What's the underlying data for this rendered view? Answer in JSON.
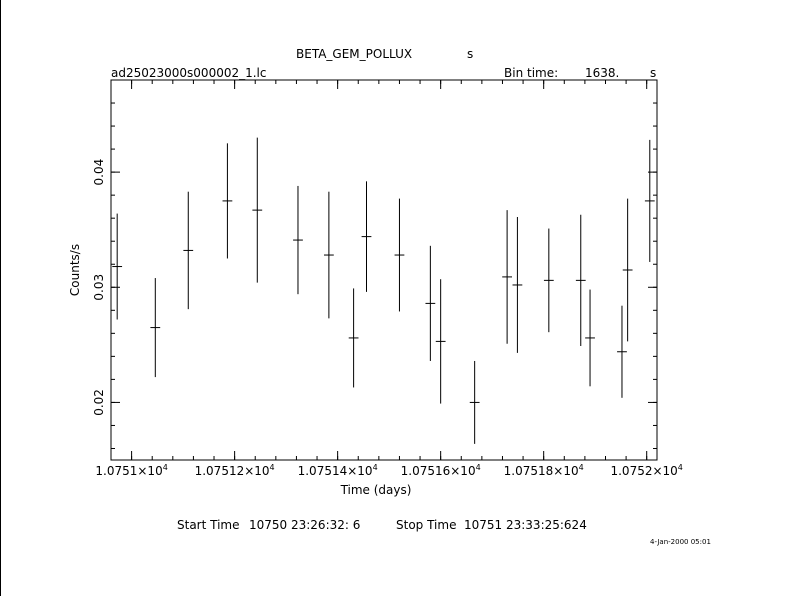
{
  "header": {
    "object_name": "BETA_GEM_POLLUX",
    "object_suffix": "s",
    "file_name": "ad25023000s000002_1.lc",
    "bin_time_label": "Bin time:",
    "bin_time_value": "1638.",
    "bin_time_unit": "s"
  },
  "footer": {
    "start_label": "Start Time",
    "start_value": "10750 23:26:32:  6",
    "stop_label": "Stop Time",
    "stop_value": "10751 23:33:25:624",
    "timestamp": "4-Jan-2000 05:01"
  },
  "chart_data": {
    "type": "scatter",
    "xlabel": "Time (days)",
    "ylabel": "Counts/s",
    "xlim": [
      10750.96,
      10752.02
    ],
    "ylim": [
      0.015,
      0.048
    ],
    "x_ticks": [
      {
        "value": 10751.0,
        "label": "1.0751×10",
        "exp": "4"
      },
      {
        "value": 10751.2,
        "label": "1.07512×10",
        "exp": "4"
      },
      {
        "value": 10751.4,
        "label": "1.07514×10",
        "exp": "4"
      },
      {
        "value": 10751.6,
        "label": "1.07516×10",
        "exp": "4"
      },
      {
        "value": 10751.8,
        "label": "1.07518×10",
        "exp": "4"
      },
      {
        "value": 10752.0,
        "label": "1.0752×10",
        "exp": "4"
      }
    ],
    "y_ticks": [
      {
        "value": 0.02,
        "label": "0.02"
      },
      {
        "value": 0.03,
        "label": "0.03"
      },
      {
        "value": 0.04,
        "label": "0.04"
      }
    ],
    "x_minor_step": 0.04,
    "y_minor_step": 0.002,
    "grid": false,
    "points": [
      {
        "x": 10750.972,
        "y": 0.0318,
        "xerr": 0.0095,
        "yerr": 0.0046
      },
      {
        "x": 10751.046,
        "y": 0.0265,
        "xerr": 0.0095,
        "yerr": 0.0043
      },
      {
        "x": 10751.11,
        "y": 0.0332,
        "xerr": 0.0095,
        "yerr": 0.0051
      },
      {
        "x": 10751.186,
        "y": 0.0375,
        "xerr": 0.0095,
        "yerr": 0.005
      },
      {
        "x": 10751.244,
        "y": 0.0367,
        "xerr": 0.0095,
        "yerr": 0.0063
      },
      {
        "x": 10751.323,
        "y": 0.0341,
        "xerr": 0.0095,
        "yerr": 0.0047
      },
      {
        "x": 10751.383,
        "y": 0.0328,
        "xerr": 0.0095,
        "yerr": 0.0055
      },
      {
        "x": 10751.431,
        "y": 0.0256,
        "xerr": 0.0095,
        "yerr": 0.0043
      },
      {
        "x": 10751.456,
        "y": 0.0344,
        "xerr": 0.0095,
        "yerr": 0.0048
      },
      {
        "x": 10751.52,
        "y": 0.0328,
        "xerr": 0.0095,
        "yerr": 0.0049
      },
      {
        "x": 10751.58,
        "y": 0.0286,
        "xerr": 0.0095,
        "yerr": 0.005
      },
      {
        "x": 10751.6,
        "y": 0.0253,
        "xerr": 0.0095,
        "yerr": 0.0054
      },
      {
        "x": 10751.666,
        "y": 0.02,
        "xerr": 0.0095,
        "yerr": 0.0036
      },
      {
        "x": 10751.729,
        "y": 0.0309,
        "xerr": 0.0095,
        "yerr": 0.0058
      },
      {
        "x": 10751.749,
        "y": 0.0302,
        "xerr": 0.0095,
        "yerr": 0.0059
      },
      {
        "x": 10751.81,
        "y": 0.0306,
        "xerr": 0.0095,
        "yerr": 0.0045
      },
      {
        "x": 10751.872,
        "y": 0.0306,
        "xerr": 0.0095,
        "yerr": 0.0057
      },
      {
        "x": 10751.89,
        "y": 0.0256,
        "xerr": 0.0095,
        "yerr": 0.0042
      },
      {
        "x": 10751.952,
        "y": 0.0244,
        "xerr": 0.0095,
        "yerr": 0.004
      },
      {
        "x": 10751.963,
        "y": 0.0315,
        "xerr": 0.0095,
        "yerr": 0.0062
      },
      {
        "x": 10752.006,
        "y": 0.0375,
        "xerr": 0.0095,
        "yerr": 0.0053
      }
    ]
  }
}
